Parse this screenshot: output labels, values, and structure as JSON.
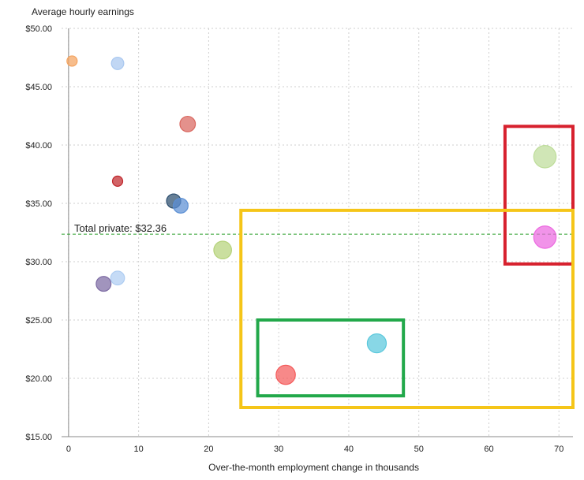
{
  "chart_data": {
    "type": "bubble",
    "ylabel": "Average hourly earnings",
    "xlabel": "Over-the-month employment change in thousands",
    "xlim": [
      -1,
      72
    ],
    "ylim": [
      15,
      50
    ],
    "x_ticks": [
      0,
      10,
      20,
      30,
      40,
      50,
      60,
      70
    ],
    "x_tick_labels": [
      "0",
      "10",
      "20",
      "30",
      "40",
      "50",
      "60",
      "70"
    ],
    "y_ticks": [
      15,
      20,
      25,
      30,
      35,
      40,
      45,
      50
    ],
    "y_tick_labels": [
      "$15.00",
      "$20.00",
      "$25.00",
      "$30.00",
      "$35.00",
      "$40.00",
      "$45.00",
      "$50.00"
    ],
    "grid": true,
    "reference_line": {
      "y": 32.36,
      "label": "Total private: $32.36",
      "color": "#2ca02c"
    },
    "points": [
      {
        "x": 0.5,
        "y": 47.2,
        "size": 1.0,
        "color": "#f4a460"
      },
      {
        "x": 7,
        "y": 47.0,
        "size": 1.5,
        "color": "#a9c8f0"
      },
      {
        "x": 17,
        "y": 41.8,
        "size": 2.4,
        "color": "#d9675f"
      },
      {
        "x": 7,
        "y": 36.9,
        "size": 1.0,
        "color": "#c0282d"
      },
      {
        "x": 15,
        "y": 35.2,
        "size": 2.0,
        "color": "#2b4d6e"
      },
      {
        "x": 16,
        "y": 34.8,
        "size": 2.2,
        "color": "#5b8fd4"
      },
      {
        "x": 22,
        "y": 31.0,
        "size": 3.2,
        "color": "#b5d27a"
      },
      {
        "x": 7,
        "y": 28.6,
        "size": 1.9,
        "color": "#aecdf2"
      },
      {
        "x": 5,
        "y": 28.1,
        "size": 2.2,
        "color": "#7d6ba3"
      },
      {
        "x": 31,
        "y": 20.3,
        "size": 3.8,
        "color": "#f45b5b"
      },
      {
        "x": 44,
        "y": 23.0,
        "size": 3.7,
        "color": "#5ac8dc"
      },
      {
        "x": 68,
        "y": 39.0,
        "size": 5.2,
        "color": "#bedd9a"
      },
      {
        "x": 68,
        "y": 32.1,
        "size": 5.2,
        "color": "#ec6ae0"
      }
    ],
    "annotation_boxes": [
      {
        "name": "red-highlight-box",
        "color": "#d7212e",
        "x0": 62.3,
        "x1": 72.0,
        "y0": 29.8,
        "y1": 41.6
      },
      {
        "name": "yellow-highlight-box",
        "color": "#f5c518",
        "x0": 24.6,
        "x1": 72.0,
        "y0": 17.5,
        "y1": 34.4
      },
      {
        "name": "green-highlight-box",
        "color": "#22a84a",
        "x0": 27.0,
        "x1": 47.8,
        "y0": 18.5,
        "y1": 25.0
      }
    ]
  }
}
